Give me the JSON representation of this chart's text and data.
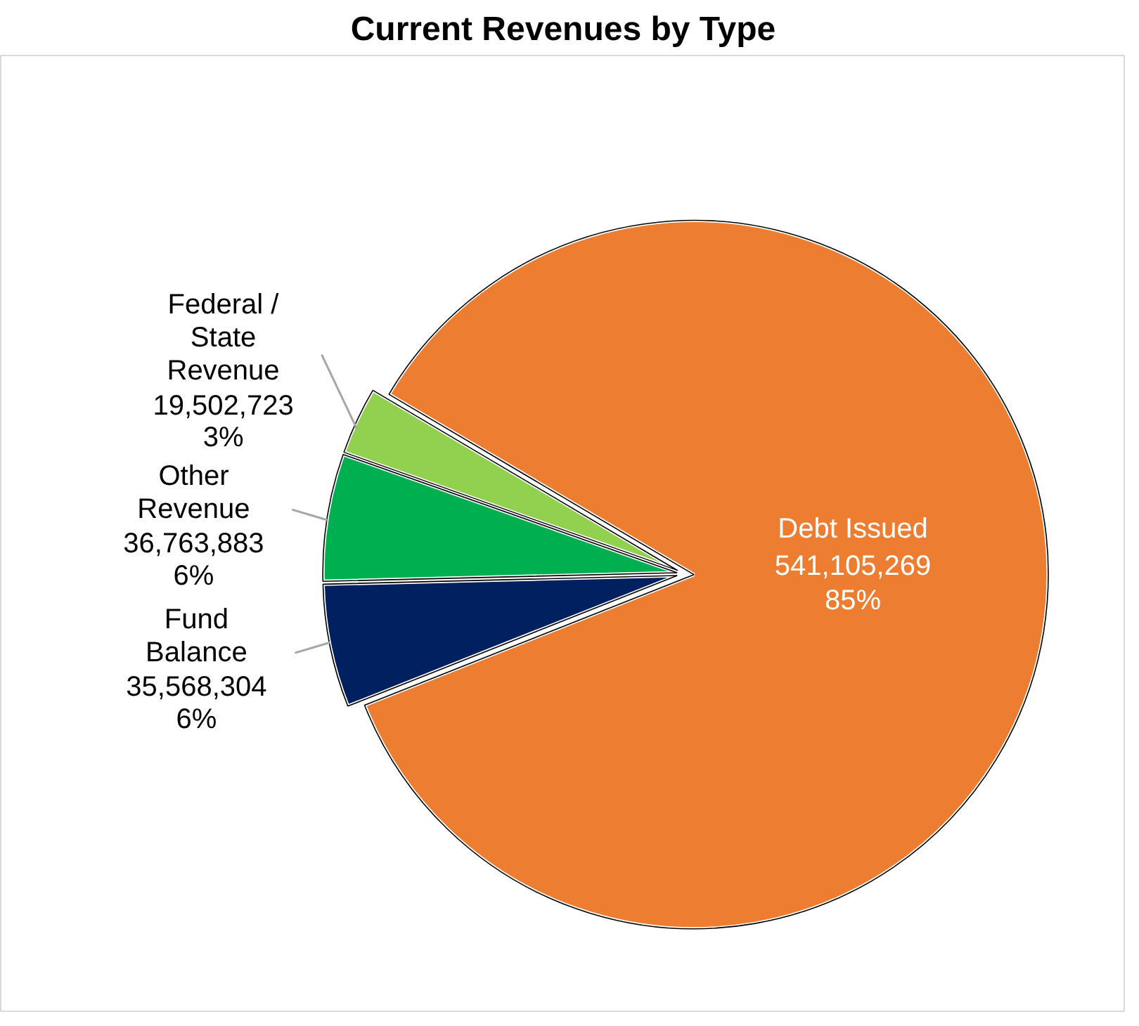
{
  "chart_data": {
    "type": "pie",
    "title": "Current Revenues by Type",
    "categories": [
      "Federal / State Revenue",
      "Other Revenue",
      "Fund Balance",
      "Debt Issued"
    ],
    "values": [
      19502723,
      36763883,
      35568304,
      541105269
    ],
    "colors": [
      "#92d050",
      "#00b050",
      "#002060",
      "#ed7d31"
    ],
    "value_labels": [
      "19,502,723\n3%",
      "36,763,883\n6%",
      "35,568,304\n6%",
      "541,105,269\n85%"
    ]
  }
}
